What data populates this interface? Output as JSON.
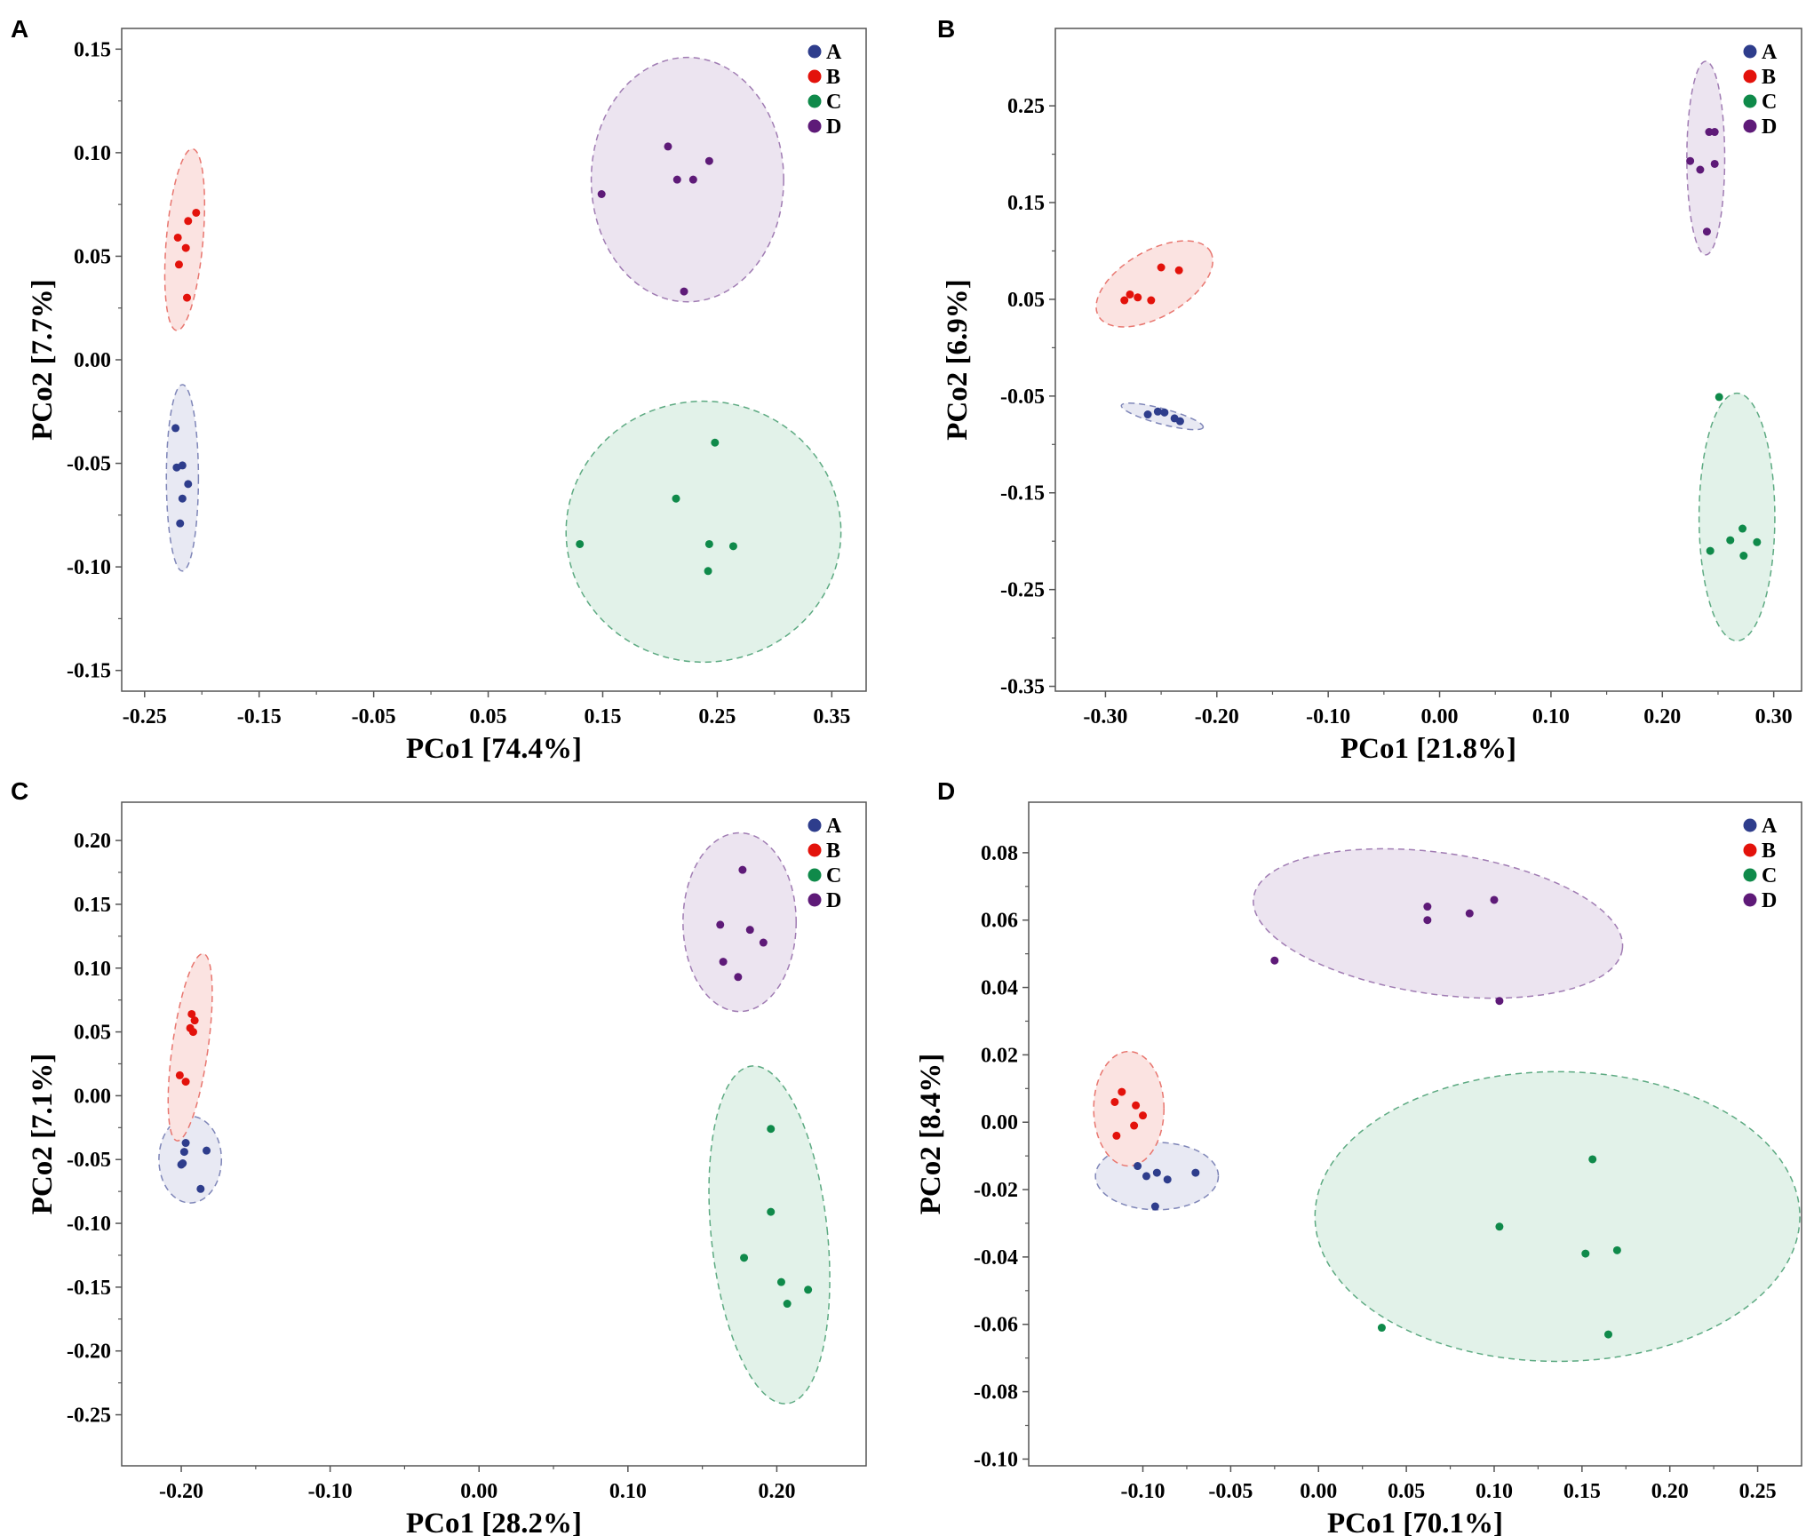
{
  "figure": {
    "background": "#ffffff"
  },
  "group_colors": {
    "A": {
      "point": "#2e3d8c",
      "fill": "#e8e9f3",
      "stroke": "#7f86b8"
    },
    "B": {
      "point": "#e3120b",
      "fill": "#fbe3e1",
      "stroke": "#e8766f"
    },
    "C": {
      "point": "#0f8a4a",
      "fill": "#e2f2e9",
      "stroke": "#5daa82"
    },
    "D": {
      "point": "#5e1a78",
      "fill": "#ece4f0",
      "stroke": "#a07cb3"
    }
  },
  "chart_data": [
    {
      "panel": "A",
      "type": "scatter",
      "xlabel": "PCo1 [74.4%]",
      "ylabel": "PCo2 [7.7%]",
      "xlim": [
        -0.27,
        0.38
      ],
      "ylim": [
        -0.16,
        0.16
      ],
      "xticks": [
        -0.25,
        -0.15,
        -0.05,
        0.05,
        0.15,
        0.25,
        0.35
      ],
      "xtick_labels": [
        "-0.25",
        "-0.15",
        "-0.05",
        "0.05",
        "0.15",
        "0.25",
        "0.35"
      ],
      "yticks": [
        -0.15,
        -0.1,
        -0.05,
        0.0,
        0.05,
        0.1,
        0.15
      ],
      "ytick_labels": [
        "-0.15",
        "-0.10",
        "-0.05",
        "0.00",
        "0.05",
        "0.10",
        "0.15"
      ],
      "legend": [
        "A",
        "B",
        "C",
        "D"
      ],
      "legend_position": "top-right",
      "series": [
        {
          "name": "A",
          "points": [
            [
              -0.223,
              -0.033
            ],
            [
              -0.222,
              -0.052
            ],
            [
              -0.217,
              -0.051
            ],
            [
              -0.212,
              -0.06
            ],
            [
              -0.217,
              -0.067
            ],
            [
              -0.219,
              -0.079
            ]
          ],
          "ellipse": {
            "cx": -0.217,
            "cy": -0.057,
            "rx": 0.014,
            "ry": 0.045,
            "angle": 0
          }
        },
        {
          "name": "B",
          "points": [
            [
              -0.205,
              0.071
            ],
            [
              -0.212,
              0.067
            ],
            [
              -0.221,
              0.059
            ],
            [
              -0.214,
              0.054
            ],
            [
              -0.22,
              0.046
            ],
            [
              -0.213,
              0.03
            ]
          ],
          "ellipse": {
            "cx": -0.215,
            "cy": 0.058,
            "rx": 0.016,
            "ry": 0.044,
            "angle": 5
          }
        },
        {
          "name": "C",
          "points": [
            [
              0.248,
              -0.04
            ],
            [
              0.214,
              -0.067
            ],
            [
              0.13,
              -0.089
            ],
            [
              0.243,
              -0.089
            ],
            [
              0.264,
              -0.09
            ],
            [
              0.242,
              -0.102
            ]
          ],
          "ellipse": {
            "cx": 0.238,
            "cy": -0.083,
            "rx": 0.12,
            "ry": 0.063,
            "angle": 0
          }
        },
        {
          "name": "D",
          "points": [
            [
              0.207,
              0.103
            ],
            [
              0.243,
              0.096
            ],
            [
              0.215,
              0.087
            ],
            [
              0.229,
              0.087
            ],
            [
              0.149,
              0.08
            ],
            [
              0.221,
              0.033
            ]
          ],
          "ellipse": {
            "cx": 0.224,
            "cy": 0.087,
            "rx": 0.084,
            "ry": 0.059,
            "angle": 0
          }
        }
      ]
    },
    {
      "panel": "B",
      "type": "scatter",
      "xlabel": "PCo1 [21.8%]",
      "ylabel": "PCo2 [6.9%]",
      "xlim": [
        -0.345,
        0.325
      ],
      "ylim": [
        -0.355,
        0.33
      ],
      "xticks": [
        -0.3,
        -0.2,
        -0.1,
        0.0,
        0.1,
        0.2,
        0.3
      ],
      "xtick_labels": [
        "-0.30",
        "-0.20",
        "-0.10",
        "0.00",
        "0.10",
        "0.20",
        "0.30"
      ],
      "yticks": [
        -0.35,
        -0.25,
        -0.15,
        -0.05,
        0.05,
        0.15,
        0.25
      ],
      "ytick_labels": [
        "-0.35",
        "-0.25",
        "-0.15",
        "-0.05",
        "0.05",
        "0.15",
        "0.25"
      ],
      "legend": [
        "A",
        "B",
        "C",
        "D"
      ],
      "legend_position": "top-right",
      "series": [
        {
          "name": "A",
          "points": [
            [
              -0.262,
              -0.069
            ],
            [
              -0.253,
              -0.066
            ],
            [
              -0.238,
              -0.073
            ],
            [
              -0.233,
              -0.076
            ],
            [
              -0.247,
              -0.067
            ]
          ],
          "ellipse": {
            "cx": -0.249,
            "cy": -0.071,
            "rx": 0.038,
            "ry": 0.008,
            "angle": 15
          }
        },
        {
          "name": "B",
          "points": [
            [
              -0.25,
              0.083
            ],
            [
              -0.234,
              0.08
            ],
            [
              -0.278,
              0.055
            ],
            [
              -0.271,
              0.052
            ],
            [
              -0.283,
              0.049
            ],
            [
              -0.259,
              0.049
            ]
          ],
          "ellipse": {
            "cx": -0.256,
            "cy": 0.066,
            "rx": 0.058,
            "ry": 0.034,
            "angle": -30
          }
        },
        {
          "name": "C",
          "points": [
            [
              0.251,
              -0.051
            ],
            [
              0.272,
              -0.187
            ],
            [
              0.261,
              -0.199
            ],
            [
              0.285,
              -0.201
            ],
            [
              0.243,
              -0.21
            ],
            [
              0.273,
              -0.215
            ]
          ],
          "ellipse": {
            "cx": 0.267,
            "cy": -0.175,
            "rx": 0.034,
            "ry": 0.128,
            "angle": 0
          }
        },
        {
          "name": "D",
          "points": [
            [
              0.242,
              0.223
            ],
            [
              0.247,
              0.223
            ],
            [
              0.225,
              0.193
            ],
            [
              0.247,
              0.19
            ],
            [
              0.234,
              0.184
            ],
            [
              0.24,
              0.12
            ]
          ],
          "ellipse": {
            "cx": 0.239,
            "cy": 0.196,
            "rx": 0.017,
            "ry": 0.1,
            "angle": 0
          }
        }
      ]
    },
    {
      "panel": "C",
      "type": "scatter",
      "xlabel": "PCo1 [28.2%]",
      "ylabel": "PCo2 [7.1%]",
      "xlim": [
        -0.24,
        0.26
      ],
      "ylim": [
        -0.29,
        0.23
      ],
      "xticks": [
        -0.2,
        -0.1,
        0.0,
        0.1,
        0.2
      ],
      "xtick_labels": [
        "-0.20",
        "-0.10",
        "0.00",
        "0.10",
        "0.20"
      ],
      "yticks": [
        -0.25,
        -0.2,
        -0.15,
        -0.1,
        -0.05,
        0.0,
        0.05,
        0.1,
        0.15,
        0.2
      ],
      "ytick_labels": [
        "-0.25",
        "-0.20",
        "-0.15",
        "-0.10",
        "-0.05",
        "0.00",
        "0.05",
        "0.10",
        "0.15",
        "0.20"
      ],
      "legend": [
        "A",
        "B",
        "C",
        "D"
      ],
      "legend_position": "top-right",
      "series": [
        {
          "name": "A",
          "points": [
            [
              -0.197,
              -0.037
            ],
            [
              -0.198,
              -0.044
            ],
            [
              -0.183,
              -0.043
            ],
            [
              -0.2,
              -0.054
            ],
            [
              -0.199,
              -0.053
            ],
            [
              -0.187,
              -0.073
            ]
          ],
          "ellipse": {
            "cx": -0.194,
            "cy": -0.05,
            "rx": 0.021,
            "ry": 0.034,
            "angle": 0
          }
        },
        {
          "name": "B",
          "points": [
            [
              -0.193,
              0.064
            ],
            [
              -0.191,
              0.059
            ],
            [
              -0.194,
              0.053
            ],
            [
              -0.192,
              0.05
            ],
            [
              -0.201,
              0.016
            ],
            [
              -0.197,
              0.011
            ]
          ],
          "ellipse": {
            "cx": -0.194,
            "cy": 0.038,
            "rx": 0.012,
            "ry": 0.074,
            "angle": 8
          }
        },
        {
          "name": "C",
          "points": [
            [
              0.196,
              -0.026
            ],
            [
              0.196,
              -0.091
            ],
            [
              0.178,
              -0.127
            ],
            [
              0.203,
              -0.146
            ],
            [
              0.221,
              -0.152
            ],
            [
              0.207,
              -0.163
            ]
          ],
          "ellipse": {
            "cx": 0.195,
            "cy": -0.109,
            "rx": 0.039,
            "ry": 0.133,
            "angle": -6
          }
        },
        {
          "name": "D",
          "points": [
            [
              0.177,
              0.177
            ],
            [
              0.162,
              0.134
            ],
            [
              0.182,
              0.13
            ],
            [
              0.191,
              0.12
            ],
            [
              0.164,
              0.105
            ],
            [
              0.174,
              0.093
            ]
          ],
          "ellipse": {
            "cx": 0.175,
            "cy": 0.136,
            "rx": 0.038,
            "ry": 0.07,
            "angle": 0
          }
        }
      ]
    },
    {
      "panel": "D",
      "type": "scatter",
      "xlabel": "PCo1 [70.1%]",
      "ylabel": "PCo2 [8.4%]",
      "xlim": [
        -0.165,
        0.275
      ],
      "ylim": [
        -0.102,
        0.095
      ],
      "xticks": [
        -0.1,
        -0.05,
        0.0,
        0.05,
        0.1,
        0.15,
        0.2,
        0.25
      ],
      "xtick_labels": [
        "-0.10",
        "-0.05",
        "0.00",
        "0.05",
        "0.10",
        "0.15",
        "0.20",
        "0.25"
      ],
      "yticks": [
        -0.1,
        -0.08,
        -0.06,
        -0.04,
        -0.02,
        0.0,
        0.02,
        0.04,
        0.06,
        0.08
      ],
      "ytick_labels": [
        "-0.10",
        "-0.08",
        "-0.06",
        "-0.04",
        "-0.02",
        "0.00",
        "0.02",
        "0.04",
        "0.06",
        "0.08"
      ],
      "legend": [
        "A",
        "B",
        "C",
        "D"
      ],
      "legend_position": "top-right",
      "series": [
        {
          "name": "A",
          "points": [
            [
              -0.103,
              -0.013
            ],
            [
              -0.07,
              -0.015
            ],
            [
              -0.092,
              -0.015
            ],
            [
              -0.086,
              -0.017
            ],
            [
              -0.098,
              -0.016
            ],
            [
              -0.093,
              -0.025
            ]
          ],
          "ellipse": {
            "cx": -0.092,
            "cy": -0.016,
            "rx": 0.035,
            "ry": 0.01,
            "angle": 0
          }
        },
        {
          "name": "B",
          "points": [
            [
              -0.112,
              0.009
            ],
            [
              -0.104,
              0.005
            ],
            [
              -0.116,
              0.006
            ],
            [
              -0.1,
              0.002
            ],
            [
              -0.105,
              -0.001
            ],
            [
              -0.115,
              -0.004
            ]
          ],
          "ellipse": {
            "cx": -0.108,
            "cy": 0.004,
            "rx": 0.02,
            "ry": 0.017,
            "angle": 0
          }
        },
        {
          "name": "C",
          "points": [
            [
              0.156,
              -0.011
            ],
            [
              0.103,
              -0.031
            ],
            [
              0.17,
              -0.038
            ],
            [
              0.152,
              -0.039
            ],
            [
              0.036,
              -0.061
            ],
            [
              0.165,
              -0.063
            ]
          ],
          "ellipse": {
            "cx": 0.136,
            "cy": -0.028,
            "rx": 0.138,
            "ry": 0.043,
            "angle": 0
          }
        },
        {
          "name": "D",
          "points": [
            [
              0.1,
              0.066
            ],
            [
              0.062,
              0.064
            ],
            [
              0.086,
              0.062
            ],
            [
              0.062,
              0.06
            ],
            [
              -0.025,
              0.048
            ],
            [
              0.103,
              0.036
            ]
          ],
          "ellipse": {
            "cx": 0.068,
            "cy": 0.059,
            "rx": 0.106,
            "ry": 0.021,
            "angle": 8
          }
        }
      ]
    }
  ]
}
